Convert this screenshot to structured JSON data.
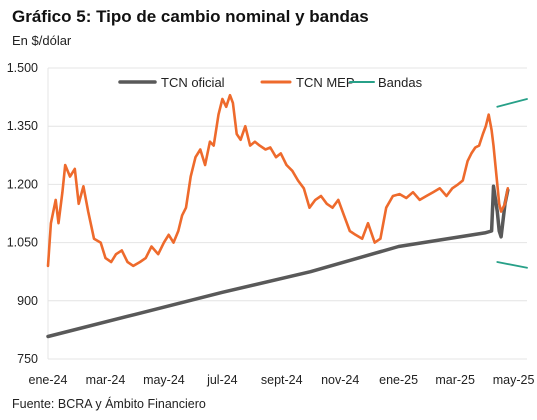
{
  "chart_data": {
    "type": "line",
    "title": "Gráfico 5: Tipo de cambio nominal y bandas",
    "subtitle": "En $/dólar",
    "source": "Fuente: BCRA y Ámbito Financiero",
    "ylim": [
      750,
      1500
    ],
    "yticks": [
      750,
      900,
      1050,
      1200,
      1350,
      1500
    ],
    "ytick_labels": [
      "750",
      "900",
      "1.050",
      "1.200",
      "1.350",
      "1.500"
    ],
    "xticks": [
      "2024-01-01",
      "2024-03-01",
      "2024-05-01",
      "2024-07-01",
      "2024-09-01",
      "2024-11-01",
      "2025-01-01",
      "2025-03-01",
      "2025-05-01"
    ],
    "xtick_labels": [
      "ene-24",
      "mar-24",
      "may-24",
      "jul-24",
      "sept-24",
      "nov-24",
      "ene-25",
      "mar-25",
      "may-25"
    ],
    "xlim": [
      "2024-01-01",
      "2025-05-15"
    ],
    "legend_position": "top",
    "grid": "horizontal",
    "colors": {
      "oficial": "#595959",
      "mep": "#ee6a2c",
      "bandas": "#27a088",
      "grid": "#e4e4e4"
    },
    "series": [
      {
        "name": "TCN oficial",
        "x": [
          "2024-01-01",
          "2024-04-01",
          "2024-07-01",
          "2024-10-01",
          "2025-01-01",
          "2025-04-01",
          "2025-04-08",
          "2025-04-10",
          "2025-04-14",
          "2025-04-16",
          "2025-04-18",
          "2025-04-22",
          "2025-04-25"
        ],
        "y": [
          808,
          865,
          922,
          975,
          1040,
          1075,
          1080,
          1195,
          1130,
          1080,
          1065,
          1150,
          1185
        ]
      },
      {
        "name": "TCN MEP",
        "x": [
          "2024-01-01",
          "2024-01-04",
          "2024-01-09",
          "2024-01-12",
          "2024-01-16",
          "2024-01-19",
          "2024-01-24",
          "2024-01-29",
          "2024-02-02",
          "2024-02-07",
          "2024-02-12",
          "2024-02-18",
          "2024-02-25",
          "2024-03-01",
          "2024-03-07",
          "2024-03-12",
          "2024-03-18",
          "2024-03-24",
          "2024-03-30",
          "2024-04-06",
          "2024-04-12",
          "2024-04-18",
          "2024-04-25",
          "2024-05-01",
          "2024-05-06",
          "2024-05-11",
          "2024-05-16",
          "2024-05-20",
          "2024-05-24",
          "2024-05-29",
          "2024-06-03",
          "2024-06-08",
          "2024-06-13",
          "2024-06-18",
          "2024-06-22",
          "2024-06-27",
          "2024-07-01",
          "2024-07-05",
          "2024-07-09",
          "2024-07-12",
          "2024-07-16",
          "2024-07-20",
          "2024-07-25",
          "2024-07-30",
          "2024-08-04",
          "2024-08-09",
          "2024-08-15",
          "2024-08-20",
          "2024-08-26",
          "2024-08-31",
          "2024-09-06",
          "2024-09-12",
          "2024-09-18",
          "2024-09-24",
          "2024-09-30",
          "2024-10-06",
          "2024-10-12",
          "2024-10-18",
          "2024-10-24",
          "2024-10-30",
          "2024-11-05",
          "2024-11-11",
          "2024-11-17",
          "2024-11-24",
          "2024-11-30",
          "2024-12-07",
          "2024-12-13",
          "2024-12-19",
          "2024-12-26",
          "2025-01-02",
          "2025-01-09",
          "2025-01-16",
          "2025-01-23",
          "2025-01-30",
          "2025-02-06",
          "2025-02-13",
          "2025-02-20",
          "2025-02-26",
          "2025-03-04",
          "2025-03-09",
          "2025-03-14",
          "2025-03-18",
          "2025-03-22",
          "2025-03-26",
          "2025-03-30",
          "2025-04-02",
          "2025-04-05",
          "2025-04-08",
          "2025-04-10",
          "2025-04-14",
          "2025-04-16",
          "2025-04-18",
          "2025-04-22",
          "2025-04-25"
        ],
        "y": [
          990,
          1100,
          1160,
          1100,
          1180,
          1250,
          1220,
          1240,
          1150,
          1195,
          1130,
          1060,
          1050,
          1010,
          1000,
          1020,
          1030,
          1000,
          990,
          1000,
          1010,
          1040,
          1020,
          1050,
          1070,
          1050,
          1080,
          1120,
          1140,
          1220,
          1270,
          1290,
          1250,
          1310,
          1300,
          1380,
          1420,
          1400,
          1430,
          1410,
          1330,
          1315,
          1350,
          1300,
          1310,
          1300,
          1290,
          1295,
          1270,
          1280,
          1250,
          1235,
          1210,
          1190,
          1140,
          1160,
          1170,
          1150,
          1140,
          1160,
          1120,
          1080,
          1070,
          1060,
          1100,
          1050,
          1060,
          1140,
          1170,
          1175,
          1165,
          1180,
          1160,
          1170,
          1180,
          1190,
          1170,
          1190,
          1200,
          1210,
          1260,
          1280,
          1295,
          1300,
          1330,
          1350,
          1380,
          1340,
          1300,
          1200,
          1150,
          1130,
          1150,
          1190
        ]
      },
      {
        "name": "Bandas",
        "x": [
          "2025-04-14",
          "2025-05-15"
        ],
        "upper": [
          1400,
          1420
        ],
        "lower": [
          1000,
          985
        ]
      }
    ]
  }
}
